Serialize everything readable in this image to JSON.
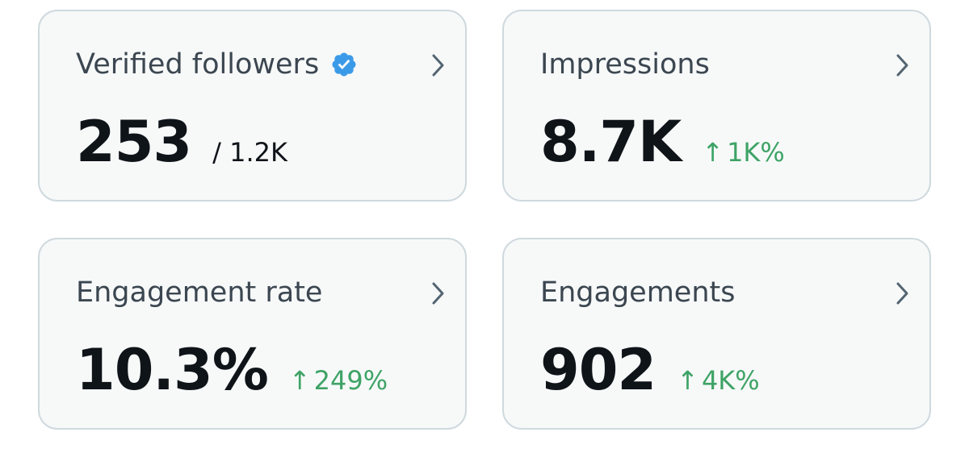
{
  "cards": [
    {
      "title": "Verified followers",
      "value": "253",
      "total": "/ 1.2K",
      "icon": "verified-badge-icon"
    },
    {
      "title": "Impressions",
      "value": "8.7K",
      "change": "1K%",
      "change_arrow": "↑"
    },
    {
      "title": "Engagement rate",
      "value": "10.3%",
      "change": "249%",
      "change_arrow": "↑"
    },
    {
      "title": "Engagements",
      "value": "902",
      "change": "4K%",
      "change_arrow": "↑"
    }
  ],
  "colors": {
    "card_background": "#f7f9f9",
    "card_border": "#cfd9de",
    "title_text": "#3b4650",
    "value_text": "#0f1419",
    "positive_change": "#3ea366",
    "verified_badge": "#3b9ae8",
    "chevron": "#536471"
  }
}
